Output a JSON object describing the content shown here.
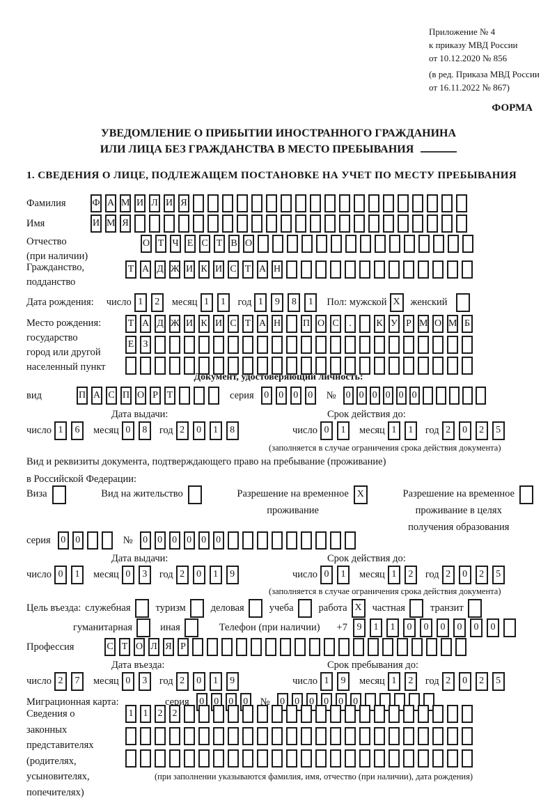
{
  "header": {
    "appendix_lines": [
      "Приложение № 4",
      "к приказу МВД России",
      "от 10.12.2020 № 856"
    ],
    "edition_lines": [
      "(в ред. Приказа МВД России",
      "от 16.11.2022 № 867)"
    ],
    "forma": "ФОРМА"
  },
  "title": {
    "line1": "УВЕДОМЛЕНИЕ О ПРИБЫТИИ ИНОСТРАННОГО ГРАЖДАНИНА",
    "line2": "ИЛИ ЛИЦА БЕЗ ГРАЖДАНСТВА В МЕСТО ПРЕБЫВАНИЯ"
  },
  "s1": {
    "heading": "1. СВЕДЕНИЯ О ЛИЦЕ, ПОДЛЕЖАЩЕМ ПОСТАНОВКЕ НА УЧЕТ ПО МЕСТУ ПРЕБЫВАНИЯ",
    "surname": {
      "label": "Фамилия",
      "cells": {
        "count": 26,
        "text": "ФАМИЛИЯ"
      }
    },
    "given_name": {
      "label": "Имя",
      "cells": {
        "count": 26,
        "text": "ИМЯ"
      }
    },
    "patronymic": {
      "label1": "Отчество",
      "label2": "(при наличии)",
      "cells": {
        "count": 23,
        "text": "ОТЧЕСТВО"
      }
    },
    "citizenship": {
      "label1": "Гражданство,",
      "label2": "подданство",
      "cells": {
        "count": 24,
        "text": "ТАДЖИКИСТАН"
      }
    },
    "birth_date": {
      "label": "Дата рождения:",
      "day_label": "число",
      "day": {
        "count": 2,
        "text": "12"
      },
      "month_label": "месяц",
      "month": {
        "count": 2,
        "text": "11"
      },
      "year_label": "год",
      "year": {
        "count": 4,
        "text": "1981"
      }
    },
    "sex": {
      "label": "Пол: мужской",
      "male": {
        "count": 1,
        "text": "X"
      },
      "female_label": "женский",
      "female": {
        "count": 1,
        "text": ""
      }
    },
    "birth_place": {
      "label_lines": [
        "Место рождения:",
        "государство",
        "город или другой",
        "населенный пункт"
      ],
      "row1": {
        "count": 24,
        "text": "ТАДЖИКИСТАН ПОС. КУРМОМБ"
      },
      "row2": {
        "count": 24,
        "text": "ЕЗ"
      },
      "row3": {
        "count": 24,
        "text": ""
      }
    },
    "identity_doc": {
      "heading": "Документ, удостоверяющий личность:",
      "type_label": "вид",
      "type": {
        "count": 10,
        "text": "ПАСПОРТ"
      },
      "series_label": "серия",
      "series": {
        "count": 4,
        "text": "0000"
      },
      "number_label": "№",
      "number": {
        "count": 11,
        "text": "000000"
      },
      "issue_heading": "Дата выдачи:",
      "issue": {
        "day_label": "число",
        "day": {
          "count": 2,
          "text": "16"
        },
        "month_label": "месяц",
        "month": {
          "count": 2,
          "text": "08"
        },
        "year_label": "год",
        "year": {
          "count": 4,
          "text": "2018"
        }
      },
      "valid_heading": "Срок действия до:",
      "valid": {
        "day_label": "число",
        "day": {
          "count": 2,
          "text": "01"
        },
        "month_label": "месяц",
        "month": {
          "count": 2,
          "text": "11"
        },
        "year_label": "год",
        "year": {
          "count": 4,
          "text": "2025"
        }
      },
      "note": "(заполняется в случае ограничения срока действия документа)"
    },
    "residence_doc": {
      "intro1": "Вид и реквизиты документа, подтверждающего право на пребывание (проживание)",
      "intro2": "в Российской Федерации:",
      "visa_label": "Виза",
      "visa": {
        "count": 1,
        "text": ""
      },
      "residence_permit_label": "Вид на жительство",
      "residence_permit": {
        "count": 1,
        "text": ""
      },
      "temp_permit_label1": "Разрешение на временное",
      "temp_permit_label2": "проживание",
      "temp_permit": {
        "count": 1,
        "text": "X"
      },
      "edu_permit_label1": "Разрешение на временное",
      "edu_permit_label2": "проживание в целях",
      "edu_permit_label3": "получения образования",
      "edu_permit": {
        "count": 1,
        "text": ""
      },
      "series_label": "серия",
      "series": {
        "count": 4,
        "text": "00"
      },
      "number_label": "№",
      "number": {
        "count": 15,
        "text": "000000"
      },
      "issue_heading": "Дата выдачи:",
      "issue": {
        "day_label": "число",
        "day": {
          "count": 2,
          "text": "01"
        },
        "month_label": "месяц",
        "month": {
          "count": 2,
          "text": "03"
        },
        "year_label": "год",
        "year": {
          "count": 4,
          "text": "2019"
        }
      },
      "valid_heading": "Срок действия до:",
      "valid": {
        "day_label": "число",
        "day": {
          "count": 2,
          "text": "01"
        },
        "month_label": "месяц",
        "month": {
          "count": 2,
          "text": "12"
        },
        "year_label": "год",
        "year": {
          "count": 4,
          "text": "2025"
        }
      },
      "note": "(заполняется в случае ограничения срока действия документа)"
    },
    "purpose": {
      "label": "Цель въезда:",
      "options": [
        {
          "label": "служебная",
          "box": {
            "count": 1,
            "text": ""
          }
        },
        {
          "label": "туризм",
          "box": {
            "count": 1,
            "text": ""
          }
        },
        {
          "label": "деловая",
          "box": {
            "count": 1,
            "text": ""
          }
        },
        {
          "label": "учеба",
          "box": {
            "count": 1,
            "text": ""
          }
        },
        {
          "label": "работа",
          "box": {
            "count": 1,
            "text": "X"
          }
        },
        {
          "label": "частная",
          "box": {
            "count": 1,
            "text": ""
          }
        },
        {
          "label": "транзит",
          "box": {
            "count": 1,
            "text": ""
          }
        },
        {
          "label": "гуманитарная",
          "box": {
            "count": 1,
            "text": ""
          }
        },
        {
          "label": "иная",
          "box": {
            "count": 1,
            "text": ""
          }
        }
      ]
    },
    "phone": {
      "label": "Телефон (при наличии)",
      "prefix": "+7",
      "cells": {
        "count": 10,
        "text": "911000000"
      }
    },
    "profession": {
      "label": "Профессия",
      "cells": {
        "count": 25,
        "text": "СТОЛЯР"
      }
    },
    "entry": {
      "heading": "Дата въезда:",
      "day_label": "число",
      "day": {
        "count": 2,
        "text": "27"
      },
      "month_label": "месяц",
      "month": {
        "count": 2,
        "text": "03"
      },
      "year_label": "год",
      "year": {
        "count": 4,
        "text": "2019"
      }
    },
    "stay": {
      "heading": "Срок пребывания до:",
      "day_label": "число",
      "day": {
        "count": 2,
        "text": "19"
      },
      "month_label": "месяц",
      "month": {
        "count": 2,
        "text": "12"
      },
      "year_label": "год",
      "year": {
        "count": 4,
        "text": "2025"
      }
    },
    "migration_card": {
      "label": "Миграционная карта:",
      "series_label": "серия",
      "series": {
        "count": 4,
        "text": "0000"
      },
      "number_label": "№",
      "number": {
        "count": 11,
        "text": "000000"
      }
    },
    "representatives": {
      "label_lines": [
        "Сведения о",
        "законных",
        "представителях",
        "(родителях,",
        "усыновителях,",
        "попечителях)"
      ],
      "row1": {
        "count": 24,
        "text": "1122"
      },
      "row2": {
        "count": 24,
        "text": ""
      },
      "row3": {
        "count": 24,
        "text": ""
      },
      "note": "(при заполнении указываются фамилия, имя, отчество (при наличии), дата рождения)"
    }
  }
}
